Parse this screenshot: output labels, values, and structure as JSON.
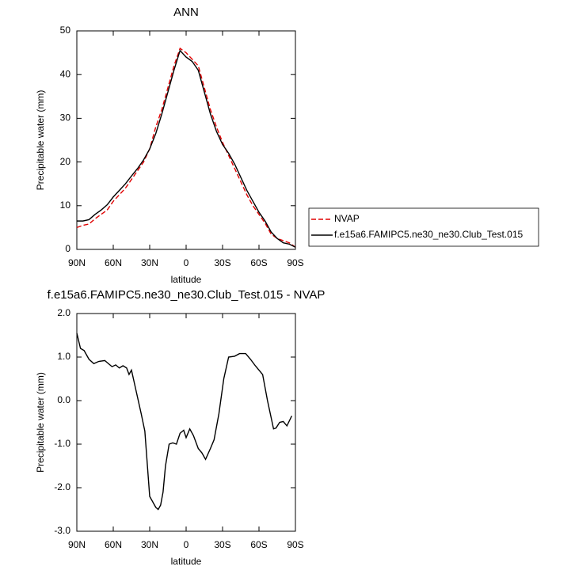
{
  "chart_data": [
    {
      "type": "line",
      "title": "ANN",
      "xlabel": "latitude",
      "ylabel": "Precipitable water (mm)",
      "x": [
        90,
        85,
        80,
        75,
        70,
        65,
        60,
        55,
        50,
        45,
        40,
        35,
        30,
        25,
        20,
        15,
        10,
        5,
        0,
        -5,
        -10,
        -15,
        -20,
        -25,
        -30,
        -35,
        -40,
        -45,
        -50,
        -55,
        -60,
        -65,
        -70,
        -75,
        -80,
        -85,
        -90
      ],
      "series": [
        {
          "name": "NVAP",
          "color": "#e00000",
          "dashed": true,
          "values": [
            5,
            5.5,
            5.8,
            7,
            8,
            9,
            11,
            12.5,
            14,
            16,
            18,
            20,
            23,
            28,
            32,
            37,
            42,
            46,
            45,
            43.5,
            42,
            37,
            32,
            28,
            24.5,
            21.5,
            18.5,
            15.5,
            12.5,
            10,
            8,
            6,
            3.5,
            2.5,
            2,
            1.5,
            0.5
          ]
        },
        {
          "name": "f.e15a6.FAMIPC5.ne30_ne30.Club_Test.015",
          "color": "#000000",
          "dashed": false,
          "values": [
            6.5,
            6.5,
            6.8,
            8,
            9,
            10.2,
            12,
            13.5,
            15,
            16.8,
            18.5,
            20.5,
            23,
            26.5,
            31,
            36,
            41,
            45.5,
            44,
            43,
            41,
            36,
            31,
            27,
            24,
            22,
            19.5,
            16.5,
            13.5,
            11,
            8.5,
            6.5,
            4,
            2.5,
            1.5,
            1.2,
            0.5
          ]
        }
      ],
      "xlim": [
        90,
        -90
      ],
      "xticks": [
        {
          "value": 90,
          "label": "90N"
        },
        {
          "value": 60,
          "label": "60N"
        },
        {
          "value": 30,
          "label": "30N"
        },
        0,
        {
          "value": -30,
          "label": "30S"
        },
        {
          "value": -60,
          "label": "60S"
        },
        {
          "value": -90,
          "label": "90S"
        }
      ],
      "ylim": [
        0,
        50
      ],
      "yticks": [
        0,
        10,
        20,
        30,
        40,
        50
      ],
      "legend": "outside-right"
    },
    {
      "type": "line",
      "title": "f.e15a6.FAMIPC5.ne30_ne30.Club_Test.015 - NVAP",
      "xlabel": "latitude",
      "ylabel": "Precipitable water (mm)",
      "x": [
        90,
        87,
        84,
        80,
        76,
        72,
        67,
        64,
        61,
        58,
        55,
        52,
        49,
        47,
        45,
        41,
        37,
        34,
        30,
        25,
        23,
        21,
        19,
        17,
        14,
        11,
        8,
        5,
        2,
        0,
        -3,
        -6,
        -10,
        -13,
        -16,
        -20,
        -23,
        -27,
        -31,
        -35,
        -40,
        -44,
        -49,
        -53,
        -57,
        -63,
        -67,
        -72,
        -74,
        -77,
        -80,
        -83,
        -87
      ],
      "values": [
        1.55,
        1.2,
        1.15,
        0.95,
        0.85,
        0.9,
        0.92,
        0.85,
        0.78,
        0.82,
        0.75,
        0.8,
        0.75,
        0.6,
        0.7,
        0.2,
        -0.3,
        -0.7,
        -2.2,
        -2.45,
        -2.5,
        -2.4,
        -2.1,
        -1.5,
        -1.0,
        -0.97,
        -1.0,
        -0.75,
        -0.68,
        -0.85,
        -0.65,
        -0.8,
        -1.1,
        -1.2,
        -1.35,
        -1.1,
        -0.9,
        -0.3,
        0.5,
        1.0,
        1.02,
        1.08,
        1.08,
        0.95,
        0.8,
        0.6,
        0.0,
        -0.65,
        -0.63,
        -0.5,
        -0.48,
        -0.58,
        -0.35
      ],
      "color": "#000000",
      "xlim": [
        90,
        -90
      ],
      "xticks": [
        {
          "value": 90,
          "label": "90N"
        },
        {
          "value": 60,
          "label": "60N"
        },
        {
          "value": 30,
          "label": "30N"
        },
        0,
        {
          "value": -30,
          "label": "30S"
        },
        {
          "value": -60,
          "label": "60S"
        },
        {
          "value": -90,
          "label": "90S"
        }
      ],
      "ylim": [
        -3,
        2
      ],
      "yticks": [
        {
          "value": -3,
          "label": "-3.0"
        },
        {
          "value": -2,
          "label": "-2.0"
        },
        {
          "value": -1,
          "label": "-1.0"
        },
        {
          "value": 0,
          "label": "0.0"
        },
        {
          "value": 1,
          "label": "1.0"
        },
        {
          "value": 2,
          "label": "2.0"
        }
      ]
    }
  ]
}
